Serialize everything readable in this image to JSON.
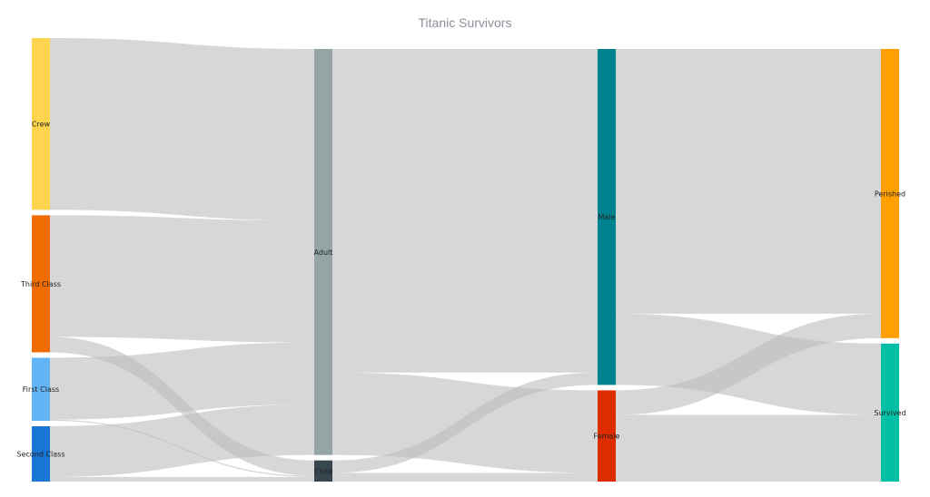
{
  "chart_data": {
    "type": "sankey",
    "title": "Titanic Survivors",
    "columns": [
      [
        "Crew",
        "Third Class",
        "First Class",
        "Second Class"
      ],
      [
        "Adult",
        "Child"
      ],
      [
        "Male",
        "Female"
      ],
      [
        "Perished",
        "Survived"
      ]
    ],
    "nodes": [
      {
        "name": "Crew",
        "color": "#FFD54F"
      },
      {
        "name": "Third Class",
        "color": "#EF6C00"
      },
      {
        "name": "First Class",
        "color": "#64B5F6"
      },
      {
        "name": "Second Class",
        "color": "#1976D2"
      },
      {
        "name": "Adult",
        "color": "#95A5A6"
      },
      {
        "name": "Child",
        "color": "#37474F"
      },
      {
        "name": "Male",
        "color": "#00838F"
      },
      {
        "name": "Female",
        "color": "#DD2C00"
      },
      {
        "name": "Perished",
        "color": "#FFA000"
      },
      {
        "name": "Survived",
        "color": "#00BFA5"
      }
    ],
    "links": [
      {
        "source": "Crew",
        "target": "Adult",
        "value": 885
      },
      {
        "source": "Third Class",
        "target": "Adult",
        "value": 627
      },
      {
        "source": "Third Class",
        "target": "Child",
        "value": 79
      },
      {
        "source": "First Class",
        "target": "Adult",
        "value": 319
      },
      {
        "source": "First Class",
        "target": "Child",
        "value": 6
      },
      {
        "source": "Second Class",
        "target": "Adult",
        "value": 261
      },
      {
        "source": "Second Class",
        "target": "Child",
        "value": 24
      },
      {
        "source": "Adult",
        "target": "Male",
        "value": 1667
      },
      {
        "source": "Adult",
        "target": "Female",
        "value": 425
      },
      {
        "source": "Child",
        "target": "Male",
        "value": 64
      },
      {
        "source": "Child",
        "target": "Female",
        "value": 45
      },
      {
        "source": "Male",
        "target": "Perished",
        "value": 1364
      },
      {
        "source": "Male",
        "target": "Survived",
        "value": 367
      },
      {
        "source": "Female",
        "target": "Perished",
        "value": 126
      },
      {
        "source": "Female",
        "target": "Survived",
        "value": 344
      }
    ]
  }
}
